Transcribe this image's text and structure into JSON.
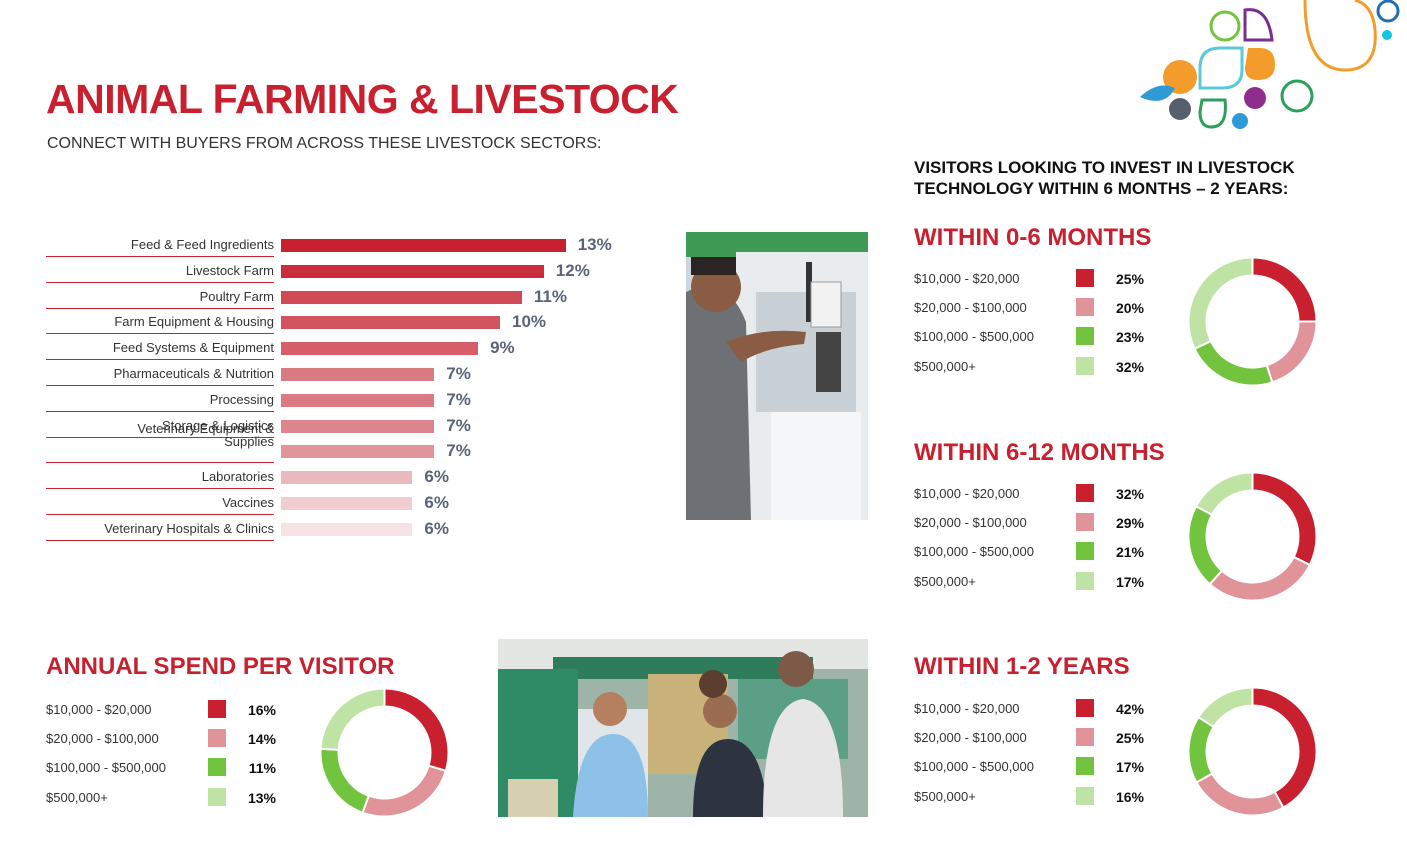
{
  "header": {
    "title": "ANIMAL FARMING & LIVESTOCK",
    "subtitle": "CONNECT WITH BUYERS FROM ACROSS THESE LIVESTOCK SECTORS:"
  },
  "invest_section": {
    "title_line1": "VISITORS LOOKING TO INVEST IN LIVESTOCK",
    "title_line2": "TECHNOLOGY WITHIN 6 MONTHS – 2 YEARS:"
  },
  "colors": {
    "red": "#c8202f",
    "pink": "#e0949a",
    "green": "#72c43e",
    "light_green": "#bfe3a5",
    "bar_shades": [
      "#c8202f",
      "#cc2d3c",
      "#d04a55",
      "#d2525d",
      "#d55e68",
      "#da7a82",
      "#da7a82",
      "#dd858d",
      "#e0959b",
      "#e9b9bd",
      "#efcdd0",
      "#f5e2e4"
    ]
  },
  "chart_data": [
    {
      "type": "bar",
      "orientation": "horizontal",
      "categories": [
        "Feed & Feed Ingredients",
        "Livestock Farm",
        "Poultry Farm",
        "Farm Equipment & Housing",
        "Feed Systems & Equipment",
        "Pharmaceuticals & Nutrition",
        "Processing",
        "Storage & Logistics",
        "Veterinary Equipment & Supplies",
        "Laboratories",
        "Vaccines",
        "Veterinary Hospitals & Clinics"
      ],
      "category_lines": [
        [
          "Feed & Feed Ingredients"
        ],
        [
          "Livestock Farm"
        ],
        [
          "Poultry Farm"
        ],
        [
          "Farm Equipment & Housing"
        ],
        [
          "Feed Systems & Equipment"
        ],
        [
          "Pharmaceuticals & Nutrition"
        ],
        [
          "Processing"
        ],
        [
          "Storage & Logistics"
        ],
        [
          "Veterinary Equipment &",
          "Supplies"
        ],
        [
          "Laboratories"
        ],
        [
          "Vaccines"
        ],
        [
          "Veterinary Hospitals & Clinics"
        ]
      ],
      "values": [
        13,
        12,
        11,
        10,
        9,
        7,
        7,
        7,
        7,
        6,
        6,
        6
      ],
      "value_labels": [
        "13%",
        "12%",
        "11%",
        "10%",
        "9%",
        "7%",
        "7%",
        "7%",
        "7%",
        "6%",
        "6%",
        "6%"
      ],
      "unit": "%"
    },
    {
      "type": "pie",
      "donut": true,
      "title": "ANNUAL SPEND PER VISITOR",
      "categories": [
        "$10,000 - $20,000",
        "$20,000 - $100,000",
        "$100,000 - $500,000",
        "$500,000+"
      ],
      "values": [
        16,
        14,
        11,
        13
      ],
      "value_labels": [
        "16%",
        "14%",
        "11%",
        "13%"
      ]
    },
    {
      "type": "pie",
      "donut": true,
      "title": "WITHIN 0-6 MONTHS",
      "categories": [
        "$10,000 - $20,000",
        "$20,000 - $100,000",
        "$100,000 - $500,000",
        "$500,000+"
      ],
      "values": [
        25,
        20,
        23,
        32
      ],
      "value_labels": [
        "25%",
        "20%",
        "23%",
        "32%"
      ]
    },
    {
      "type": "pie",
      "donut": true,
      "title": "WITHIN 6-12 MONTHS",
      "categories": [
        "$10,000 - $20,000",
        "$20,000 - $100,000",
        "$100,000 - $500,000",
        "$500,000+"
      ],
      "values": [
        32,
        29,
        21,
        17
      ],
      "value_labels": [
        "32%",
        "29%",
        "21%",
        "17%"
      ]
    },
    {
      "type": "pie",
      "donut": true,
      "title": "WITHIN 1-2 YEARS",
      "categories": [
        "$10,000 - $20,000",
        "$20,000 - $100,000",
        "$100,000 - $500,000",
        "$500,000+"
      ],
      "values": [
        42,
        25,
        17,
        16
      ],
      "value_labels": [
        "42%",
        "25%",
        "17%",
        "16%"
      ]
    }
  ]
}
